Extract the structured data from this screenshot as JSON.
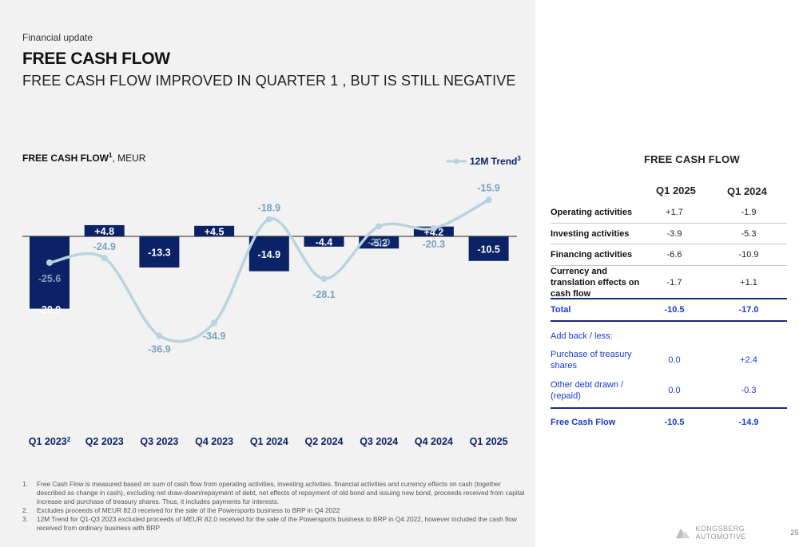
{
  "header": {
    "kicker": "Financial update",
    "title": "FREE CASH FLOW",
    "subtitle": "FREE CASH FLOW IMPROVED IN QUARTER 1 , BUT IS STILL NEGATIVE"
  },
  "chart": {
    "title_bold": "FREE CASH FLOW",
    "title_sup": "1",
    "title_rest": ", MEUR",
    "legend_label": "12M Trend",
    "legend_sup": "3"
  },
  "chart_data": {
    "type": "bar",
    "categories": [
      "Q1 2023",
      "Q2 2023",
      "Q3 2023",
      "Q4 2023",
      "Q1 2024",
      "Q2 2024",
      "Q3 2024",
      "Q4 2024",
      "Q1 2025"
    ],
    "category_sups": [
      "2",
      "",
      "",
      "",
      "",
      "",
      "",
      "",
      ""
    ],
    "values": [
      -30.9,
      4.8,
      -13.3,
      4.5,
      -14.9,
      -4.4,
      -5.2,
      4.2,
      -10.5
    ],
    "value_labels": [
      "-30.9",
      "+4.8",
      "-13.3",
      "+4.5",
      "-14.9",
      "-4.4",
      "-5.2",
      "+4.2",
      "-10.5"
    ],
    "trend": {
      "name": "12M Trend",
      "values": [
        -25.6,
        -24.9,
        -36.9,
        -34.9,
        -18.9,
        -28.1,
        -20.0,
        -20.3,
        -15.9
      ],
      "labels": [
        "-25.6",
        "-24.9",
        "-36.9",
        "-34.9",
        "-18.9",
        "-28.1",
        "-20.0",
        "-20.3",
        "-15.9"
      ]
    },
    "colors": {
      "bar": "#0c2266",
      "trend": "#b9d3e1",
      "trend_label": "#7aa3bb"
    }
  },
  "table": {
    "title": "FREE CASH FLOW",
    "col1": "Q1 2025",
    "col2": "Q1 2024",
    "rows": [
      {
        "label": "Operating activities",
        "v1": "+1.7",
        "v2": "-1.9"
      },
      {
        "label": "Investing activities",
        "v1": "-3.9",
        "v2": "-5.3"
      },
      {
        "label": "Financing activities",
        "v1": "-6.6",
        "v2": "-10.9"
      },
      {
        "label": "Currency and translation effects on cash flow",
        "v1": "-1.7",
        "v2": "+1.1"
      }
    ],
    "total": {
      "label": "Total",
      "v1": "-10.5",
      "v2": "-17.0"
    },
    "addback": "Add back / less:",
    "treasury": {
      "label": "Purchase of treasury shares",
      "v1": "0.0",
      "v2": "+2.4"
    },
    "debt": {
      "label": "Other debt drawn / (repaid)",
      "v1": "0.0",
      "v2": "-0.3"
    },
    "fcf": {
      "label": "Free Cash Flow",
      "v1": "-10.5",
      "v2": "-14.9"
    }
  },
  "footnotes": [
    {
      "num": "1.",
      "text": "Free Cash Flow is measured based on sum of cash flow from operating activities, investing activities, financial activities and currency effects on cash (together described as change in cash), excluding net draw-down/repayment of debt, net effects of repayment of old bond and issuing new bond, proceeds received from capital increase and purchase of treasury shares. Thus, it includes payments for interests."
    },
    {
      "num": "2.",
      "text": "Excludes proceeds of MEUR 82.0 received for the sale of the Powersports business to BRP in Q4 2022"
    },
    {
      "num": "3.",
      "text": "12M Trend for Q1-Q3 2023 excluded proceeds of MEUR 82.0 received for the sale of the Powersports business to BRP in Q4 2022, however included the cash flow received from ordinary business with BRP"
    }
  ],
  "footer": {
    "brand": "KONGSBERG AUTOMOTIVE",
    "page": "25"
  }
}
